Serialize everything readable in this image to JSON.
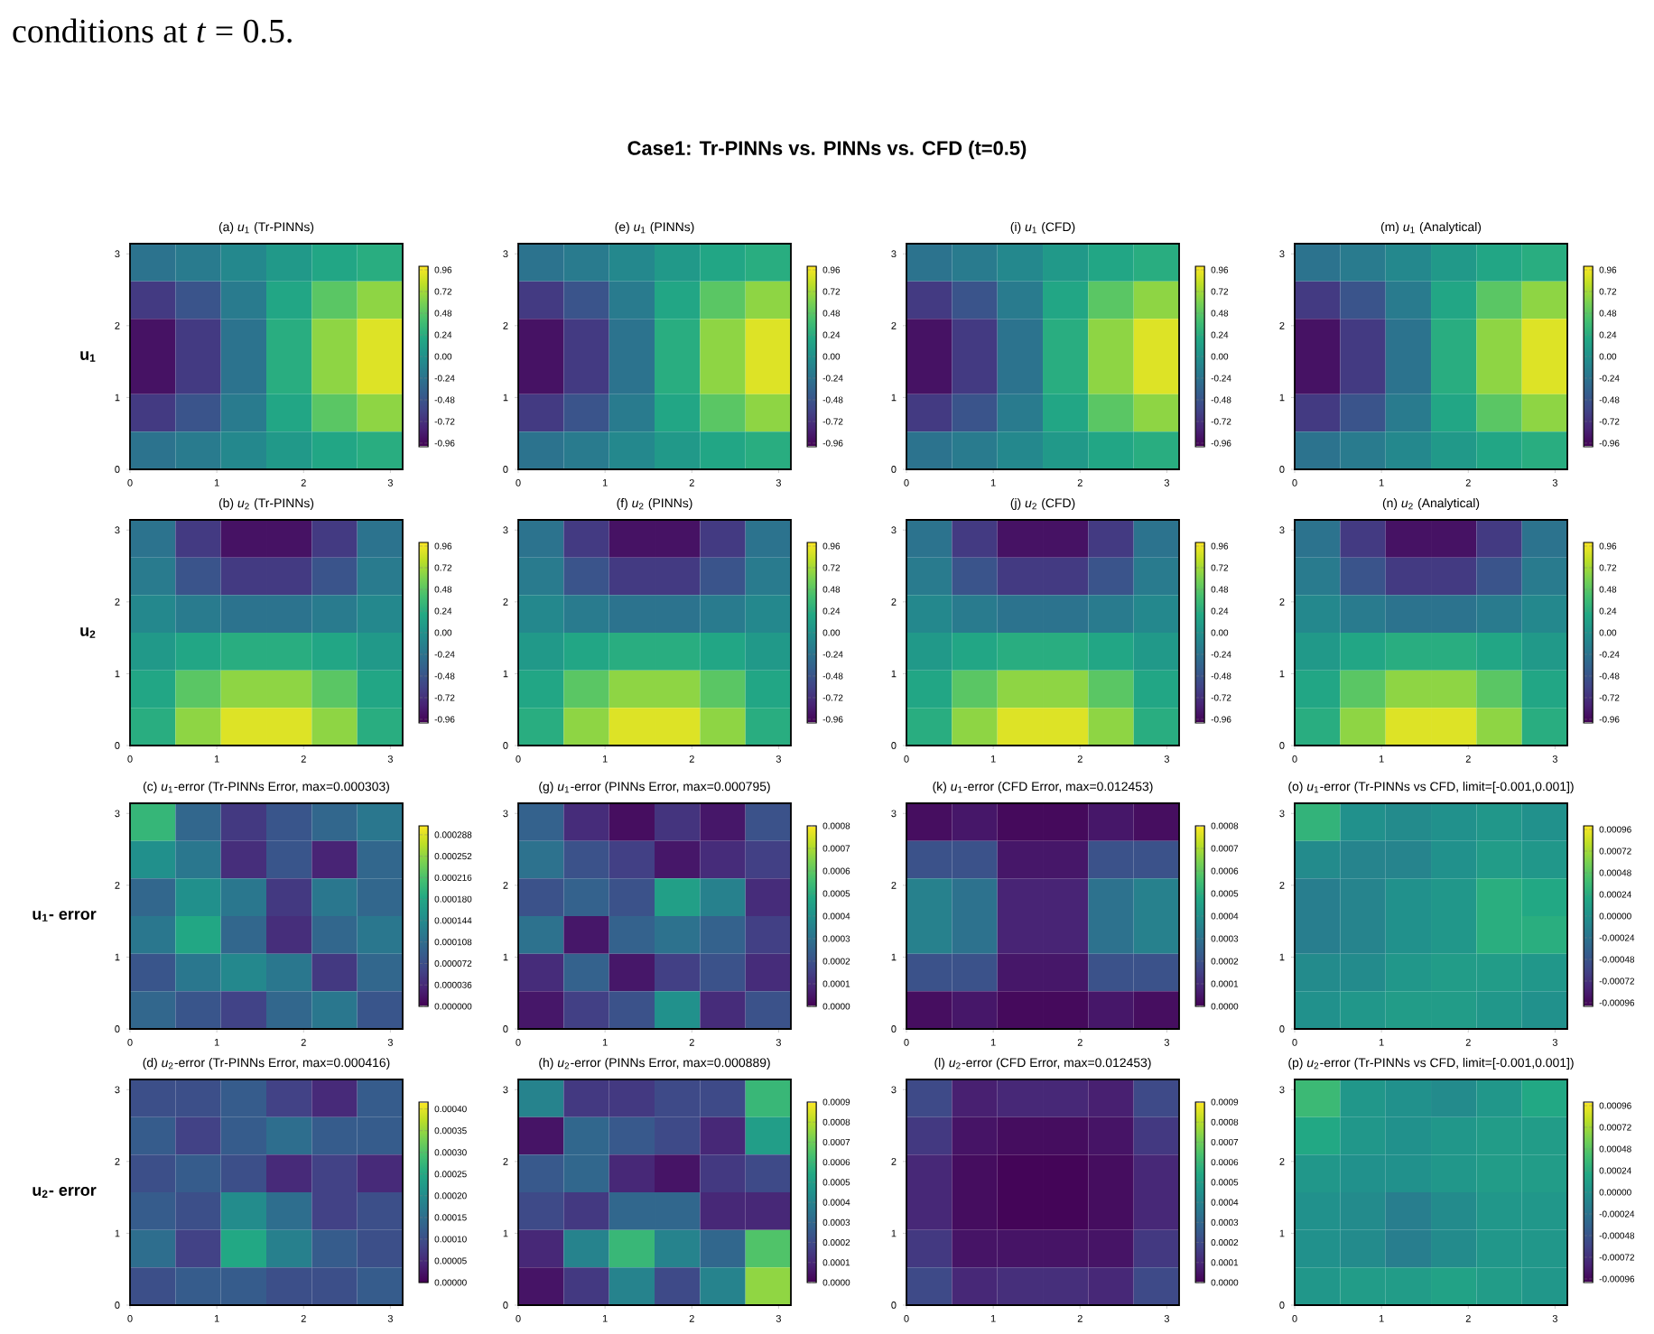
{
  "chart_data": [
    {
      "type": "other",
      "title": "Case1: Tr-PINNs vs. PINNs vs. CFD (t=0.5)",
      "annotations": [
        "conditions at *t* = 0.5."
      ]
    },
    {
      "type": "heatmap",
      "title": "(a) *u*$_{1}$ (Tr-PINNs)",
      "ylabel": "u$_{1}$",
      "x": [
        0.2618,
        0.7854,
        1.309,
        1.8326,
        2.3562,
        2.8798
      ],
      "y": [
        2.8798,
        2.3562,
        1.8326,
        1.309,
        0.7854,
        0.2618
      ],
      "xlim": [
        0,
        3.1416
      ],
      "ylim": [
        0,
        3.1416
      ],
      "xticks": [
        0,
        1,
        2,
        3
      ],
      "yticks": [
        0,
        1,
        2,
        3
      ],
      "clim": [
        -1,
        1
      ],
      "cticks": [
        {
          "value": 0.96,
          "label": "0.96"
        },
        {
          "value": 0.72,
          "label": "0.72"
        },
        {
          "value": 0.48,
          "label": "0.48"
        },
        {
          "value": 0.24,
          "label": "0.24"
        },
        {
          "value": 0,
          "label": "0.00"
        },
        {
          "value": -0.24,
          "label": "-0.24"
        },
        {
          "value": -0.48,
          "label": "-0.48"
        },
        {
          "value": -0.72,
          "label": "-0.72"
        },
        {
          "value": -0.96,
          "label": "-0.96"
        }
      ],
      "cells": [
        [
          -0.24,
          -0.18,
          -0.07,
          0.07,
          0.18,
          0.24
        ],
        [
          -0.66,
          -0.48,
          -0.18,
          0.18,
          0.48,
          0.66
        ],
        [
          -0.9,
          -0.66,
          -0.24,
          0.24,
          0.66,
          0.9
        ],
        [
          -0.9,
          -0.66,
          -0.24,
          0.24,
          0.66,
          0.9
        ],
        [
          -0.66,
          -0.48,
          -0.18,
          0.18,
          0.48,
          0.66
        ],
        [
          -0.24,
          -0.18,
          -0.07,
          0.07,
          0.18,
          0.24
        ]
      ]
    },
    {
      "type": "heatmap",
      "title": "(e) *u*$_{1}$ (PINNs)",
      "x": [
        0.2618,
        0.7854,
        1.309,
        1.8326,
        2.3562,
        2.8798
      ],
      "y": [
        2.8798,
        2.3562,
        1.8326,
        1.309,
        0.7854,
        0.2618
      ],
      "xlim": [
        0,
        3.1416
      ],
      "ylim": [
        0,
        3.1416
      ],
      "xticks": [
        0,
        1,
        2,
        3
      ],
      "yticks": [
        0,
        1,
        2,
        3
      ],
      "clim": [
        -1,
        1
      ],
      "cticks": [
        {
          "value": 0.96,
          "label": "0.96"
        },
        {
          "value": 0.72,
          "label": "0.72"
        },
        {
          "value": 0.48,
          "label": "0.48"
        },
        {
          "value": 0.24,
          "label": "0.24"
        },
        {
          "value": 0,
          "label": "0.00"
        },
        {
          "value": -0.24,
          "label": "-0.24"
        },
        {
          "value": -0.48,
          "label": "-0.48"
        },
        {
          "value": -0.72,
          "label": "-0.72"
        },
        {
          "value": -0.96,
          "label": "-0.96"
        }
      ],
      "cells": [
        [
          -0.24,
          -0.18,
          -0.07,
          0.07,
          0.18,
          0.24
        ],
        [
          -0.66,
          -0.48,
          -0.18,
          0.18,
          0.48,
          0.66
        ],
        [
          -0.9,
          -0.66,
          -0.24,
          0.24,
          0.66,
          0.9
        ],
        [
          -0.9,
          -0.66,
          -0.24,
          0.24,
          0.66,
          0.9
        ],
        [
          -0.66,
          -0.48,
          -0.18,
          0.18,
          0.48,
          0.66
        ],
        [
          -0.24,
          -0.18,
          -0.07,
          0.07,
          0.18,
          0.24
        ]
      ]
    },
    {
      "type": "heatmap",
      "title": "(i) *u*$_{1}$ (CFD)",
      "x": [
        0.2618,
        0.7854,
        1.309,
        1.8326,
        2.3562,
        2.8798
      ],
      "y": [
        2.8798,
        2.3562,
        1.8326,
        1.309,
        0.7854,
        0.2618
      ],
      "xlim": [
        0,
        3.1416
      ],
      "ylim": [
        0,
        3.1416
      ],
      "xticks": [
        0,
        1,
        2,
        3
      ],
      "yticks": [
        0,
        1,
        2,
        3
      ],
      "clim": [
        -1,
        1
      ],
      "cticks": [
        {
          "value": 0.96,
          "label": "0.96"
        },
        {
          "value": 0.72,
          "label": "0.72"
        },
        {
          "value": 0.48,
          "label": "0.48"
        },
        {
          "value": 0.24,
          "label": "0.24"
        },
        {
          "value": 0,
          "label": "0.00"
        },
        {
          "value": -0.24,
          "label": "-0.24"
        },
        {
          "value": -0.48,
          "label": "-0.48"
        },
        {
          "value": -0.72,
          "label": "-0.72"
        },
        {
          "value": -0.96,
          "label": "-0.96"
        }
      ],
      "cells": [
        [
          -0.24,
          -0.18,
          -0.07,
          0.07,
          0.18,
          0.24
        ],
        [
          -0.66,
          -0.48,
          -0.18,
          0.18,
          0.48,
          0.66
        ],
        [
          -0.9,
          -0.66,
          -0.24,
          0.24,
          0.66,
          0.9
        ],
        [
          -0.9,
          -0.66,
          -0.24,
          0.24,
          0.66,
          0.9
        ],
        [
          -0.66,
          -0.48,
          -0.18,
          0.18,
          0.48,
          0.66
        ],
        [
          -0.24,
          -0.18,
          -0.07,
          0.07,
          0.18,
          0.24
        ]
      ]
    },
    {
      "type": "heatmap",
      "title": "(m) *u*$_{1}$ (Analytical)",
      "x": [
        0.2618,
        0.7854,
        1.309,
        1.8326,
        2.3562,
        2.8798
      ],
      "y": [
        2.8798,
        2.3562,
        1.8326,
        1.309,
        0.7854,
        0.2618
      ],
      "xlim": [
        0,
        3.1416
      ],
      "ylim": [
        0,
        3.1416
      ],
      "xticks": [
        0,
        1,
        2,
        3
      ],
      "yticks": [
        0,
        1,
        2,
        3
      ],
      "clim": [
        -1,
        1
      ],
      "cticks": [
        {
          "value": 0.96,
          "label": "0.96"
        },
        {
          "value": 0.72,
          "label": "0.72"
        },
        {
          "value": 0.48,
          "label": "0.48"
        },
        {
          "value": 0.24,
          "label": "0.24"
        },
        {
          "value": 0,
          "label": "0.00"
        },
        {
          "value": -0.24,
          "label": "-0.24"
        },
        {
          "value": -0.48,
          "label": "-0.48"
        },
        {
          "value": -0.72,
          "label": "-0.72"
        },
        {
          "value": -0.96,
          "label": "-0.96"
        }
      ],
      "cells": [
        [
          -0.24,
          -0.18,
          -0.07,
          0.07,
          0.18,
          0.24
        ],
        [
          -0.66,
          -0.48,
          -0.18,
          0.18,
          0.48,
          0.66
        ],
        [
          -0.9,
          -0.66,
          -0.24,
          0.24,
          0.66,
          0.9
        ],
        [
          -0.9,
          -0.66,
          -0.24,
          0.24,
          0.66,
          0.9
        ],
        [
          -0.66,
          -0.48,
          -0.18,
          0.18,
          0.48,
          0.66
        ],
        [
          -0.24,
          -0.18,
          -0.07,
          0.07,
          0.18,
          0.24
        ]
      ]
    },
    {
      "type": "heatmap",
      "title": "(b) *u*$_{2}$ (Tr-PINNs)",
      "ylabel": "u$_{2}$",
      "x": [
        0.2618,
        0.7854,
        1.309,
        1.8326,
        2.3562,
        2.8798
      ],
      "y": [
        2.8798,
        2.3562,
        1.8326,
        1.309,
        0.7854,
        0.2618
      ],
      "xlim": [
        0,
        3.1416
      ],
      "ylim": [
        0,
        3.1416
      ],
      "xticks": [
        0,
        1,
        2,
        3
      ],
      "yticks": [
        0,
        1,
        2,
        3
      ],
      "clim": [
        -1,
        1
      ],
      "cticks": [
        {
          "value": 0.96,
          "label": "0.96"
        },
        {
          "value": 0.72,
          "label": "0.72"
        },
        {
          "value": 0.48,
          "label": "0.48"
        },
        {
          "value": 0.24,
          "label": "0.24"
        },
        {
          "value": 0,
          "label": "0.00"
        },
        {
          "value": -0.24,
          "label": "-0.24"
        },
        {
          "value": -0.48,
          "label": "-0.48"
        },
        {
          "value": -0.72,
          "label": "-0.72"
        },
        {
          "value": -0.96,
          "label": "-0.96"
        }
      ],
      "cells": [
        [
          -0.24,
          -0.66,
          -0.9,
          -0.9,
          -0.66,
          -0.24
        ],
        [
          -0.18,
          -0.48,
          -0.66,
          -0.66,
          -0.48,
          -0.18
        ],
        [
          -0.07,
          -0.18,
          -0.24,
          -0.24,
          -0.18,
          -0.07
        ],
        [
          0.07,
          0.18,
          0.24,
          0.24,
          0.18,
          0.07
        ],
        [
          0.18,
          0.48,
          0.66,
          0.66,
          0.48,
          0.18
        ],
        [
          0.24,
          0.66,
          0.9,
          0.9,
          0.66,
          0.24
        ]
      ]
    },
    {
      "type": "heatmap",
      "title": "(f) *u*$_{2}$ (PINNs)",
      "x": [
        0.2618,
        0.7854,
        1.309,
        1.8326,
        2.3562,
        2.8798
      ],
      "y": [
        2.8798,
        2.3562,
        1.8326,
        1.309,
        0.7854,
        0.2618
      ],
      "xlim": [
        0,
        3.1416
      ],
      "ylim": [
        0,
        3.1416
      ],
      "xticks": [
        0,
        1,
        2,
        3
      ],
      "yticks": [
        0,
        1,
        2,
        3
      ],
      "clim": [
        -1,
        1
      ],
      "cticks": [
        {
          "value": 0.96,
          "label": "0.96"
        },
        {
          "value": 0.72,
          "label": "0.72"
        },
        {
          "value": 0.48,
          "label": "0.48"
        },
        {
          "value": 0.24,
          "label": "0.24"
        },
        {
          "value": 0,
          "label": "0.00"
        },
        {
          "value": -0.24,
          "label": "-0.24"
        },
        {
          "value": -0.48,
          "label": "-0.48"
        },
        {
          "value": -0.72,
          "label": "-0.72"
        },
        {
          "value": -0.96,
          "label": "-0.96"
        }
      ],
      "cells": [
        [
          -0.24,
          -0.66,
          -0.9,
          -0.9,
          -0.66,
          -0.24
        ],
        [
          -0.18,
          -0.48,
          -0.66,
          -0.66,
          -0.48,
          -0.18
        ],
        [
          -0.07,
          -0.18,
          -0.24,
          -0.24,
          -0.18,
          -0.07
        ],
        [
          0.07,
          0.18,
          0.24,
          0.24,
          0.18,
          0.07
        ],
        [
          0.18,
          0.48,
          0.66,
          0.66,
          0.48,
          0.18
        ],
        [
          0.24,
          0.66,
          0.9,
          0.9,
          0.66,
          0.24
        ]
      ]
    },
    {
      "type": "heatmap",
      "title": "(j) *u*$_{2}$ (CFD)",
      "x": [
        0.2618,
        0.7854,
        1.309,
        1.8326,
        2.3562,
        2.8798
      ],
      "y": [
        2.8798,
        2.3562,
        1.8326,
        1.309,
        0.7854,
        0.2618
      ],
      "xlim": [
        0,
        3.1416
      ],
      "ylim": [
        0,
        3.1416
      ],
      "xticks": [
        0,
        1,
        2,
        3
      ],
      "yticks": [
        0,
        1,
        2,
        3
      ],
      "clim": [
        -1,
        1
      ],
      "cticks": [
        {
          "value": 0.96,
          "label": "0.96"
        },
        {
          "value": 0.72,
          "label": "0.72"
        },
        {
          "value": 0.48,
          "label": "0.48"
        },
        {
          "value": 0.24,
          "label": "0.24"
        },
        {
          "value": 0,
          "label": "0.00"
        },
        {
          "value": -0.24,
          "label": "-0.24"
        },
        {
          "value": -0.48,
          "label": "-0.48"
        },
        {
          "value": -0.72,
          "label": "-0.72"
        },
        {
          "value": -0.96,
          "label": "-0.96"
        }
      ],
      "cells": [
        [
          -0.24,
          -0.66,
          -0.9,
          -0.9,
          -0.66,
          -0.24
        ],
        [
          -0.18,
          -0.48,
          -0.66,
          -0.66,
          -0.48,
          -0.18
        ],
        [
          -0.07,
          -0.18,
          -0.24,
          -0.24,
          -0.18,
          -0.07
        ],
        [
          0.07,
          0.18,
          0.24,
          0.24,
          0.18,
          0.07
        ],
        [
          0.18,
          0.48,
          0.66,
          0.66,
          0.48,
          0.18
        ],
        [
          0.24,
          0.66,
          0.9,
          0.9,
          0.66,
          0.24
        ]
      ]
    },
    {
      "type": "heatmap",
      "title": "(n) *u*$_{2}$ (Analytical)",
      "x": [
        0.2618,
        0.7854,
        1.309,
        1.8326,
        2.3562,
        2.8798
      ],
      "y": [
        2.8798,
        2.3562,
        1.8326,
        1.309,
        0.7854,
        0.2618
      ],
      "xlim": [
        0,
        3.1416
      ],
      "ylim": [
        0,
        3.1416
      ],
      "xticks": [
        0,
        1,
        2,
        3
      ],
      "yticks": [
        0,
        1,
        2,
        3
      ],
      "clim": [
        -1,
        1
      ],
      "cticks": [
        {
          "value": 0.96,
          "label": "0.96"
        },
        {
          "value": 0.72,
          "label": "0.72"
        },
        {
          "value": 0.48,
          "label": "0.48"
        },
        {
          "value": 0.24,
          "label": "0.24"
        },
        {
          "value": 0,
          "label": "0.00"
        },
        {
          "value": -0.24,
          "label": "-0.24"
        },
        {
          "value": -0.48,
          "label": "-0.48"
        },
        {
          "value": -0.72,
          "label": "-0.72"
        },
        {
          "value": -0.96,
          "label": "-0.96"
        }
      ],
      "cells": [
        [
          -0.24,
          -0.66,
          -0.9,
          -0.9,
          -0.66,
          -0.24
        ],
        [
          -0.18,
          -0.48,
          -0.66,
          -0.66,
          -0.48,
          -0.18
        ],
        [
          -0.07,
          -0.18,
          -0.24,
          -0.24,
          -0.18,
          -0.07
        ],
        [
          0.07,
          0.18,
          0.24,
          0.24,
          0.18,
          0.07
        ],
        [
          0.18,
          0.48,
          0.66,
          0.66,
          0.48,
          0.18
        ],
        [
          0.24,
          0.66,
          0.9,
          0.9,
          0.66,
          0.24
        ]
      ]
    },
    {
      "type": "heatmap",
      "title": "(c) *u*$_{1}$-error (Tr-PINNs Error, max=0.000303)",
      "ylabel": "u$_{1}$- error",
      "x": [
        0.2618,
        0.7854,
        1.309,
        1.8326,
        2.3562,
        2.8798
      ],
      "y": [
        2.8798,
        2.3562,
        1.8326,
        1.309,
        0.7854,
        0.2618
      ],
      "xlim": [
        0,
        3.1416
      ],
      "ylim": [
        0,
        3.1416
      ],
      "xticks": [
        0,
        1,
        2,
        3
      ],
      "yticks": [
        0,
        1,
        2,
        3
      ],
      "clim": [
        0,
        0.000303
      ],
      "cticks": [
        {
          "value": 0.000288,
          "label": "0.000288"
        },
        {
          "value": 0.000252,
          "label": "0.000252"
        },
        {
          "value": 0.000216,
          "label": "0.000216"
        },
        {
          "value": 0.00018,
          "label": "0.000180"
        },
        {
          "value": 0.000144,
          "label": "0.000144"
        },
        {
          "value": 0.000108,
          "label": "0.000108"
        },
        {
          "value": 7.2e-05,
          "label": "0.000072"
        },
        {
          "value": 3.6e-05,
          "label": "0.000036"
        },
        {
          "value": 0,
          "label": "0.000000"
        }
      ],
      "cells": [
        [
          0.0002,
          0.0001,
          5e-05,
          8e-05,
          0.0001,
          0.00012
        ],
        [
          0.00015,
          0.00012,
          4e-05,
          8e-05,
          3e-05,
          0.0001
        ],
        [
          0.0001,
          0.00015,
          0.00012,
          5e-05,
          0.00012,
          0.0001
        ],
        [
          0.00012,
          0.00018,
          0.0001,
          4e-05,
          0.0001,
          0.00012
        ],
        [
          8e-05,
          0.00012,
          0.00014,
          0.00012,
          5e-05,
          0.0001
        ],
        [
          0.0001,
          8e-05,
          6e-05,
          0.0001,
          0.00012,
          8e-05
        ]
      ]
    },
    {
      "type": "heatmap",
      "title": "(g) *u*$_{1}$-error (PINNs Error, max=0.000795)",
      "x": [
        0.2618,
        0.7854,
        1.309,
        1.8326,
        2.3562,
        2.8798
      ],
      "y": [
        2.8798,
        2.3562,
        1.8326,
        1.309,
        0.7854,
        0.2618
      ],
      "xlim": [
        0,
        3.1416
      ],
      "ylim": [
        0,
        3.1416
      ],
      "xticks": [
        0,
        1,
        2,
        3
      ],
      "yticks": [
        0,
        1,
        2,
        3
      ],
      "clim": [
        0,
        0.0008
      ],
      "cticks": [
        {
          "value": 0.0008,
          "label": "0.0008"
        },
        {
          "value": 0.0007,
          "label": "0.0007"
        },
        {
          "value": 0.0006,
          "label": "0.0006"
        },
        {
          "value": 0.0005,
          "label": "0.0005"
        },
        {
          "value": 0.0004,
          "label": "0.0004"
        },
        {
          "value": 0.0003,
          "label": "0.0003"
        },
        {
          "value": 0.0002,
          "label": "0.0002"
        },
        {
          "value": 0.0001,
          "label": "0.0001"
        },
        {
          "value": 0,
          "label": "0.0000"
        }
      ],
      "cells": [
        [
          0.00025,
          0.0001,
          3e-05,
          0.00012,
          5e-05,
          0.0002
        ],
        [
          0.0003,
          0.0002,
          0.00015,
          5e-05,
          0.0001,
          0.00015
        ],
        [
          0.0002,
          0.00025,
          0.0002,
          0.00045,
          0.00035,
          0.0001
        ],
        [
          0.0003,
          5e-05,
          0.00025,
          0.0003,
          0.00025,
          0.00015
        ],
        [
          0.0001,
          0.00025,
          5e-05,
          0.00015,
          0.0002,
          0.0001
        ],
        [
          5e-05,
          0.00015,
          0.0002,
          0.0004,
          0.0001,
          0.0002
        ]
      ]
    },
    {
      "type": "heatmap",
      "title": "(k) *u*$_{1}$-error (CFD Error, max=0.012453)",
      "x": [
        0.2618,
        0.7854,
        1.309,
        1.8326,
        2.3562,
        2.8798
      ],
      "y": [
        2.8798,
        2.3562,
        1.8326,
        1.309,
        0.7854,
        0.2618
      ],
      "xlim": [
        0,
        3.1416
      ],
      "ylim": [
        0,
        3.1416
      ],
      "xticks": [
        0,
        1,
        2,
        3
      ],
      "yticks": [
        0,
        1,
        2,
        3
      ],
      "clim": [
        0,
        0.0008
      ],
      "cticks": [
        {
          "value": 0.0008,
          "label": "0.0008"
        },
        {
          "value": 0.0007,
          "label": "0.0007"
        },
        {
          "value": 0.0006,
          "label": "0.0006"
        },
        {
          "value": 0.0005,
          "label": "0.0005"
        },
        {
          "value": 0.0004,
          "label": "0.0004"
        },
        {
          "value": 0.0003,
          "label": "0.0003"
        },
        {
          "value": 0.0002,
          "label": "0.0002"
        },
        {
          "value": 0.0001,
          "label": "0.0001"
        },
        {
          "value": 0,
          "label": "0.0000"
        }
      ],
      "cells": [
        [
          3e-05,
          5e-05,
          2e-05,
          2e-05,
          5e-05,
          3e-05
        ],
        [
          0.0002,
          0.0002,
          5e-05,
          5e-05,
          0.0002,
          0.0002
        ],
        [
          0.00035,
          0.0003,
          8e-05,
          8e-05,
          0.0003,
          0.00035
        ],
        [
          0.00035,
          0.0003,
          8e-05,
          8e-05,
          0.0003,
          0.00035
        ],
        [
          0.0002,
          0.0002,
          5e-05,
          5e-05,
          0.0002,
          0.0002
        ],
        [
          3e-05,
          5e-05,
          2e-05,
          2e-05,
          5e-05,
          3e-05
        ]
      ]
    },
    {
      "type": "heatmap",
      "title": "(o) *u*$_{1}$-error (Tr-PINNs vs CFD, limit=[-0.001,0.001])",
      "x": [
        0.2618,
        0.7854,
        1.309,
        1.8326,
        2.3562,
        2.8798
      ],
      "y": [
        2.8798,
        2.3562,
        1.8326,
        1.309,
        0.7854,
        0.2618
      ],
      "xlim": [
        0,
        3.1416
      ],
      "ylim": [
        0,
        3.1416
      ],
      "xticks": [
        0,
        1,
        2,
        3
      ],
      "yticks": [
        0,
        1,
        2,
        3
      ],
      "clim": [
        -0.001,
        0.001
      ],
      "cticks": [
        {
          "value": 0.00096,
          "label": "0.00096"
        },
        {
          "value": 0.00072,
          "label": "0.00072"
        },
        {
          "value": 0.00048,
          "label": "0.00048"
        },
        {
          "value": 0.00024,
          "label": "0.00024"
        },
        {
          "value": 0,
          "label": "0.00000"
        },
        {
          "value": -0.00024,
          "label": "-0.00024"
        },
        {
          "value": -0.00048,
          "label": "-0.00048"
        },
        {
          "value": -0.00072,
          "label": "-0.00072"
        },
        {
          "value": -0.00096,
          "label": "-0.00096"
        }
      ],
      "cells": [
        [
          0.0003,
          0,
          -5e-05,
          0,
          5e-05,
          0
        ],
        [
          -5e-05,
          -0.0001,
          -0.0001,
          0,
          0.0001,
          5e-05
        ],
        [
          -0.00015,
          -0.0001,
          0,
          5e-05,
          0.00025,
          0.0002
        ],
        [
          -0.00015,
          -0.0001,
          0,
          5e-05,
          0.00025,
          0.00025
        ],
        [
          -5e-05,
          -5e-05,
          5e-05,
          0.0001,
          0.0001,
          5e-05
        ],
        [
          0,
          5e-05,
          0.0001,
          0.0001,
          5e-05,
          0
        ]
      ]
    },
    {
      "type": "heatmap",
      "title": "(d) *u*$_{2}$-error (Tr-PINNs Error, max=0.000416)",
      "ylabel": "u$_{2}$- error",
      "x": [
        0.2618,
        0.7854,
        1.309,
        1.8326,
        2.3562,
        2.8798
      ],
      "y": [
        2.8798,
        2.3562,
        1.8326,
        1.309,
        0.7854,
        0.2618
      ],
      "xlim": [
        0,
        3.1416
      ],
      "ylim": [
        0,
        3.1416
      ],
      "xticks": [
        0,
        1,
        2,
        3
      ],
      "yticks": [
        0,
        1,
        2,
        3
      ],
      "clim": [
        0,
        0.000416
      ],
      "cticks": [
        {
          "value": 0.0004,
          "label": "0.00040"
        },
        {
          "value": 0.00035,
          "label": "0.00035"
        },
        {
          "value": 0.0003,
          "label": "0.00030"
        },
        {
          "value": 0.00025,
          "label": "0.00025"
        },
        {
          "value": 0.0002,
          "label": "0.00020"
        },
        {
          "value": 0.00015,
          "label": "0.00015"
        },
        {
          "value": 0.0001,
          "label": "0.00010"
        },
        {
          "value": 5e-05,
          "label": "0.00005"
        },
        {
          "value": 0,
          "label": "0.00000"
        }
      ],
      "cells": [
        [
          0.0001,
          0.0001,
          0.00012,
          8e-05,
          5e-05,
          0.00012
        ],
        [
          0.00012,
          8e-05,
          0.00012,
          0.00015,
          0.00012,
          0.00012
        ],
        [
          0.0001,
          0.00012,
          0.0001,
          5e-05,
          8e-05,
          5e-05
        ],
        [
          0.00012,
          0.0001,
          0.0002,
          0.00015,
          8e-05,
          0.0001
        ],
        [
          0.00015,
          8e-05,
          0.00025,
          0.00018,
          0.00012,
          0.0001
        ],
        [
          0.0001,
          0.00012,
          0.00012,
          0.0001,
          0.0001,
          0.00012
        ]
      ]
    },
    {
      "type": "heatmap",
      "title": "(h) *u*$_{2}$-error (PINNs Error, max=0.000889)",
      "x": [
        0.2618,
        0.7854,
        1.309,
        1.8326,
        2.3562,
        2.8798
      ],
      "y": [
        2.8798,
        2.3562,
        1.8326,
        1.309,
        0.7854,
        0.2618
      ],
      "xlim": [
        0,
        3.1416
      ],
      "ylim": [
        0,
        3.1416
      ],
      "xticks": [
        0,
        1,
        2,
        3
      ],
      "yticks": [
        0,
        1,
        2,
        3
      ],
      "clim": [
        0,
        0.0009
      ],
      "cticks": [
        {
          "value": 0.0009,
          "label": "0.0009"
        },
        {
          "value": 0.0008,
          "label": "0.0008"
        },
        {
          "value": 0.0007,
          "label": "0.0007"
        },
        {
          "value": 0.0006,
          "label": "0.0006"
        },
        {
          "value": 0.0005,
          "label": "0.0005"
        },
        {
          "value": 0.0004,
          "label": "0.0004"
        },
        {
          "value": 0.0003,
          "label": "0.0003"
        },
        {
          "value": 0.0002,
          "label": "0.0002"
        },
        {
          "value": 0.0001,
          "label": "0.0001"
        },
        {
          "value": 0,
          "label": "0.0000"
        }
      ],
      "cells": [
        [
          0.0004,
          0.00015,
          0.00015,
          0.0002,
          0.0002,
          0.0006
        ],
        [
          5e-05,
          0.0003,
          0.00025,
          0.0002,
          0.0001,
          0.0005
        ],
        [
          0.00025,
          0.0003,
          0.0001,
          5e-05,
          0.00015,
          0.0002
        ],
        [
          0.0002,
          0.00015,
          0.0003,
          0.0003,
          0.0001,
          0.0001
        ],
        [
          0.0001,
          0.0004,
          0.0006,
          0.0004,
          0.0003,
          0.00065
        ],
        [
          5e-05,
          0.00015,
          0.0004,
          0.0002,
          0.0004,
          0.00075
        ]
      ]
    },
    {
      "type": "heatmap",
      "title": "(l) *u*$_{2}$-error (CFD Error, max=0.012453)",
      "x": [
        0.2618,
        0.7854,
        1.309,
        1.8326,
        2.3562,
        2.8798
      ],
      "y": [
        2.8798,
        2.3562,
        1.8326,
        1.309,
        0.7854,
        0.2618
      ],
      "xlim": [
        0,
        3.1416
      ],
      "ylim": [
        0,
        3.1416
      ],
      "xticks": [
        0,
        1,
        2,
        3
      ],
      "yticks": [
        0,
        1,
        2,
        3
      ],
      "clim": [
        0,
        0.0009
      ],
      "cticks": [
        {
          "value": 0.0009,
          "label": "0.0009"
        },
        {
          "value": 0.0008,
          "label": "0.0008"
        },
        {
          "value": 0.0007,
          "label": "0.0007"
        },
        {
          "value": 0.0006,
          "label": "0.0006"
        },
        {
          "value": 0.0005,
          "label": "0.0005"
        },
        {
          "value": 0.0004,
          "label": "0.0004"
        },
        {
          "value": 0.0003,
          "label": "0.0003"
        },
        {
          "value": 0.0002,
          "label": "0.0002"
        },
        {
          "value": 0.0001,
          "label": "0.0001"
        },
        {
          "value": 0,
          "label": "0.0000"
        }
      ],
      "cells": [
        [
          0.0002,
          8e-05,
          0.0001,
          0.0001,
          8e-05,
          0.0002
        ],
        [
          0.00015,
          5e-05,
          3e-05,
          3e-05,
          5e-05,
          0.00015
        ],
        [
          0.0001,
          3e-05,
          1e-05,
          1e-05,
          3e-05,
          0.0001
        ],
        [
          0.0001,
          3e-05,
          1e-05,
          1e-05,
          3e-05,
          0.0001
        ],
        [
          0.00015,
          5e-05,
          5e-05,
          5e-05,
          5e-05,
          0.00015
        ],
        [
          0.0002,
          0.0001,
          0.00012,
          0.00012,
          0.0001,
          0.0002
        ]
      ]
    },
    {
      "type": "heatmap",
      "title": "(p) *u*$_{2}$-error (Tr-PINNs vs CFD, limit=[-0.001,0.001])",
      "x": [
        0.2618,
        0.7854,
        1.309,
        1.8326,
        2.3562,
        2.8798
      ],
      "y": [
        2.8798,
        2.3562,
        1.8326,
        1.309,
        0.7854,
        0.2618
      ],
      "xlim": [
        0,
        3.1416
      ],
      "ylim": [
        0,
        3.1416
      ],
      "xticks": [
        0,
        1,
        2,
        3
      ],
      "yticks": [
        0,
        1,
        2,
        3
      ],
      "clim": [
        -0.001,
        0.001
      ],
      "cticks": [
        {
          "value": 0.00096,
          "label": "0.00096"
        },
        {
          "value": 0.00072,
          "label": "0.00072"
        },
        {
          "value": 0.00048,
          "label": "0.00048"
        },
        {
          "value": 0.00024,
          "label": "0.00024"
        },
        {
          "value": 0,
          "label": "0.00000"
        },
        {
          "value": -0.00024,
          "label": "-0.00024"
        },
        {
          "value": -0.00048,
          "label": "-0.00048"
        },
        {
          "value": -0.00072,
          "label": "-0.00072"
        },
        {
          "value": -0.00096,
          "label": "-0.00096"
        }
      ],
      "cells": [
        [
          0.00035,
          5e-05,
          0,
          -5e-05,
          5e-05,
          0.0002
        ],
        [
          0.0002,
          5e-05,
          0,
          5e-05,
          0.0001,
          0.0001
        ],
        [
          5e-05,
          0,
          0,
          5e-05,
          0.0001,
          0.0001
        ],
        [
          0,
          -5e-05,
          -0.00015,
          -5e-05,
          5e-05,
          5e-05
        ],
        [
          0,
          -5e-05,
          -0.00015,
          -5e-05,
          5e-05,
          5e-05
        ],
        [
          5e-05,
          0.0001,
          0.0001,
          0.00015,
          0.0001,
          5e-05
        ]
      ]
    }
  ]
}
